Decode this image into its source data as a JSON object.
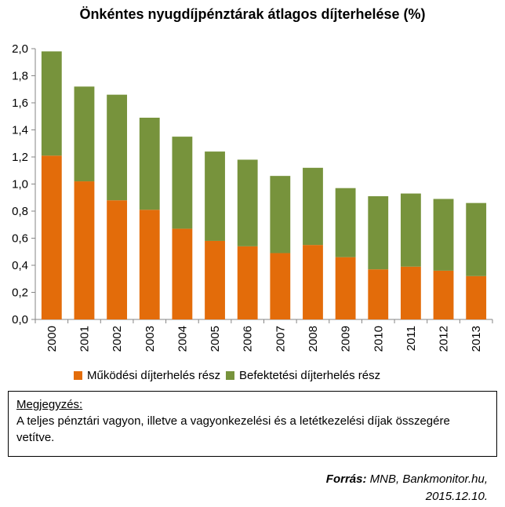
{
  "chart_data": {
    "type": "bar",
    "stacked": true,
    "title": "Önkéntes nyugdíjpénztárak átlagos díjterhelése (%)",
    "categories": [
      "2000",
      "2001",
      "2002",
      "2003",
      "2004",
      "2005",
      "2006",
      "2007",
      "2008",
      "2009",
      "2010",
      "2011",
      "2012",
      "2013"
    ],
    "series": [
      {
        "name": "Működési díjterhelés rész",
        "color": "#E36C0A",
        "values": [
          1.21,
          1.02,
          0.88,
          0.81,
          0.67,
          0.58,
          0.54,
          0.49,
          0.55,
          0.46,
          0.37,
          0.39,
          0.36,
          0.32
        ]
      },
      {
        "name": "Befektetési díjterhelés rész",
        "color": "#77933C",
        "values": [
          0.77,
          0.7,
          0.78,
          0.68,
          0.68,
          0.66,
          0.64,
          0.57,
          0.57,
          0.51,
          0.54,
          0.54,
          0.53,
          0.54
        ]
      }
    ],
    "ylim": [
      0,
      2.0
    ],
    "yticks": [
      "0,0",
      "0,2",
      "0,4",
      "0,6",
      "0,8",
      "1,0",
      "1,2",
      "1,4",
      "1,6",
      "1,8",
      "2,0"
    ],
    "grid": false,
    "legend_position": "bottom"
  },
  "note": {
    "title": "Megjegyzés:",
    "text": "A teljes pénztári vagyon, illetve a vagyonkezelési és a letétkezelési díjak összegére vetítve."
  },
  "source": {
    "label": "Forrás:",
    "text": "MNB, Bankmonitor.hu,",
    "date": "2015.12.10."
  }
}
